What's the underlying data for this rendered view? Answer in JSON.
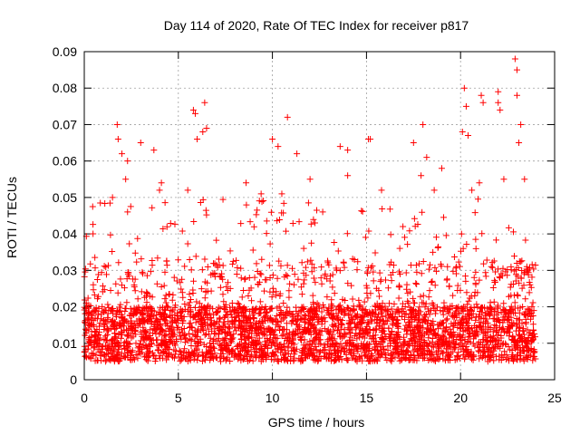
{
  "chart_data": {
    "type": "scatter",
    "title": "Day 114 of 2020, Rate Of TEC Index for receiver p817",
    "xlabel": "GPS time / hours",
    "ylabel": "ROTI / TECUs",
    "xlim": [
      0,
      25
    ],
    "ylim": [
      0,
      0.09
    ],
    "xticks": [
      0,
      5,
      10,
      15,
      20,
      25
    ],
    "xtick_labels": [
      "0",
      "5",
      "10",
      "15",
      "20",
      "25"
    ],
    "yticks": [
      0,
      0.01,
      0.02,
      0.03,
      0.04,
      0.05,
      0.06,
      0.07,
      0.08,
      0.09
    ],
    "ytick_labels": [
      "0",
      "0.01",
      "0.02",
      "0.03",
      "0.04",
      "0.05",
      "0.06",
      "0.07",
      "0.08",
      "0.09"
    ],
    "grid": true,
    "marker": "+",
    "color": "#ff0000",
    "x_range_of_data": [
      0,
      24
    ],
    "typical_band": [
      0.005,
      0.02
    ],
    "points": [
      [
        1.75,
        0.07
      ],
      [
        1.8,
        0.066
      ],
      [
        2.0,
        0.062
      ],
      [
        2.3,
        0.06
      ],
      [
        3.0,
        0.065
      ],
      [
        3.7,
        0.063
      ],
      [
        5.8,
        0.074
      ],
      [
        5.9,
        0.073
      ],
      [
        6.4,
        0.076
      ],
      [
        6.5,
        0.069
      ],
      [
        6.3,
        0.068
      ],
      [
        6.0,
        0.066
      ],
      [
        10.0,
        0.066
      ],
      [
        10.3,
        0.064
      ],
      [
        10.8,
        0.072
      ],
      [
        11.3,
        0.062
      ],
      [
        13.6,
        0.064
      ],
      [
        14.0,
        0.063
      ],
      [
        15.1,
        0.066
      ],
      [
        15.2,
        0.066
      ],
      [
        17.5,
        0.065
      ],
      [
        18.0,
        0.07
      ],
      [
        18.2,
        0.061
      ],
      [
        20.2,
        0.08
      ],
      [
        20.3,
        0.075
      ],
      [
        20.1,
        0.068
      ],
      [
        20.4,
        0.067
      ],
      [
        21.1,
        0.078
      ],
      [
        21.2,
        0.076
      ],
      [
        22.0,
        0.079
      ],
      [
        22.0,
        0.076
      ],
      [
        22.1,
        0.074
      ],
      [
        22.9,
        0.088
      ],
      [
        23.0,
        0.085
      ],
      [
        23.0,
        0.078
      ],
      [
        23.2,
        0.07
      ],
      [
        23.1,
        0.065
      ],
      [
        19.0,
        0.058
      ],
      [
        2.2,
        0.055
      ],
      [
        4.1,
        0.054
      ],
      [
        8.6,
        0.054
      ],
      [
        12.0,
        0.055
      ],
      [
        14.0,
        0.056
      ],
      [
        17.9,
        0.056
      ],
      [
        21.0,
        0.054
      ],
      [
        22.3,
        0.055
      ],
      [
        23.4,
        0.055
      ],
      [
        1.5,
        0.05
      ],
      [
        4.0,
        0.052
      ],
      [
        5.5,
        0.052
      ],
      [
        9.4,
        0.051
      ],
      [
        10.5,
        0.051
      ],
      [
        15.8,
        0.052
      ],
      [
        18.6,
        0.052
      ],
      [
        20.6,
        0.052
      ]
    ]
  }
}
